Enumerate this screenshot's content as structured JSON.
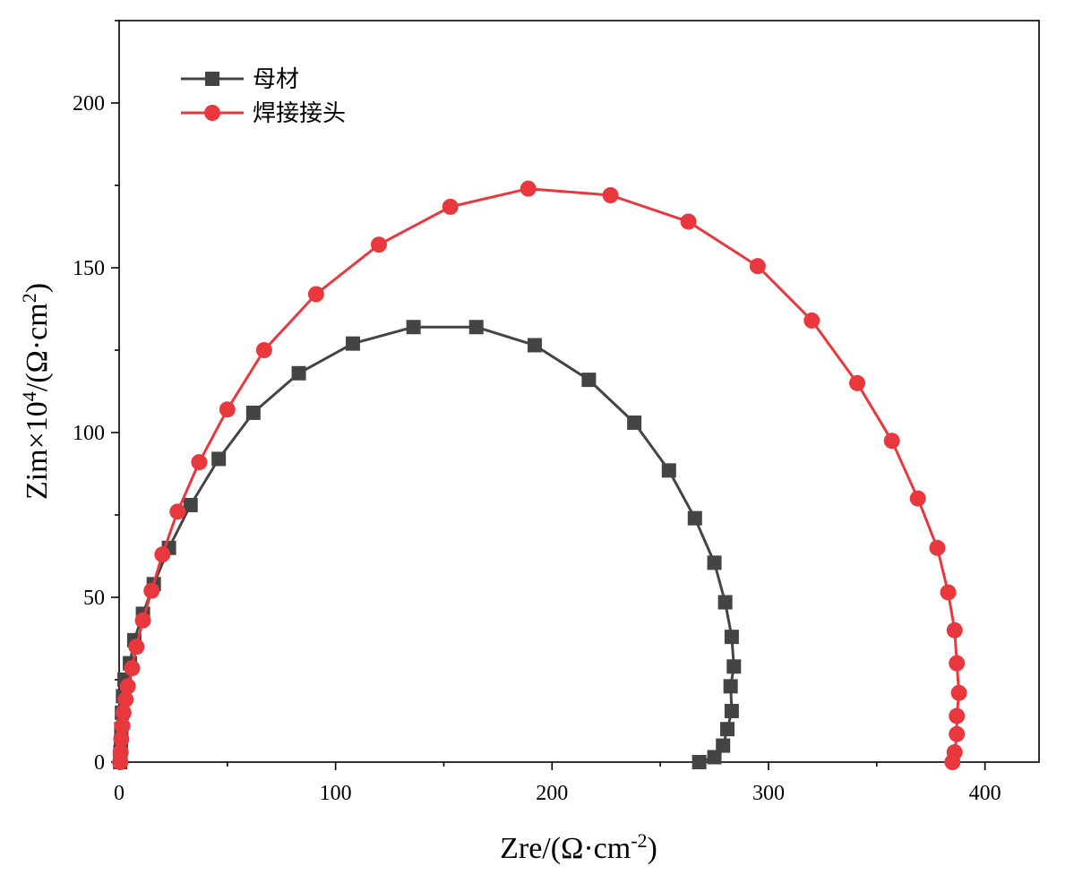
{
  "chart_data": {
    "type": "scatter",
    "title": "",
    "xlabel": {
      "base": "Zre/(Ω·cm",
      "sup": "-2",
      "tail": ")"
    },
    "ylabel": {
      "base": "Zim×10",
      "sup1": "4",
      "mid": "/(Ω·cm",
      "sup2": "2",
      "tail": ")"
    },
    "xlim": [
      0,
      425
    ],
    "ylim": [
      0,
      225
    ],
    "xticks": [
      0,
      100,
      200,
      300,
      400
    ],
    "yticks": [
      0,
      50,
      100,
      150,
      200
    ],
    "xtick_labels": [
      "0",
      "100",
      "200",
      "300",
      "400"
    ],
    "ytick_labels": [
      "0",
      "50",
      "100",
      "150",
      "200"
    ],
    "grid": false,
    "legend_position": "top-left",
    "series": [
      {
        "name": "母材",
        "color": "#444444",
        "marker": "square",
        "points": [
          [
            0.5,
            0
          ],
          [
            0.6,
            3
          ],
          [
            0.8,
            6
          ],
          [
            1,
            10
          ],
          [
            1.3,
            15
          ],
          [
            1.8,
            20
          ],
          [
            2.5,
            25
          ],
          [
            5,
            30
          ],
          [
            7,
            37
          ],
          [
            11,
            45
          ],
          [
            16,
            54
          ],
          [
            23,
            65
          ],
          [
            33,
            78
          ],
          [
            46,
            92
          ],
          [
            62,
            106
          ],
          [
            83,
            118
          ],
          [
            108,
            127
          ],
          [
            136,
            132
          ],
          [
            165,
            132
          ],
          [
            192,
            126.5
          ],
          [
            217,
            116
          ],
          [
            238,
            103
          ],
          [
            254,
            88.5
          ],
          [
            266,
            74
          ],
          [
            275,
            60.5
          ],
          [
            280,
            48.5
          ],
          [
            283,
            38
          ],
          [
            284,
            29
          ],
          [
            282.5,
            23
          ],
          [
            283,
            15.5
          ],
          [
            281,
            10
          ],
          [
            279,
            5
          ],
          [
            275,
            1.5
          ],
          [
            268,
            0
          ]
        ]
      },
      {
        "name": "焊接接头",
        "color": "#e8383d",
        "marker": "circle",
        "points": [
          [
            0.5,
            0
          ],
          [
            0.7,
            3
          ],
          [
            1,
            7
          ],
          [
            1.5,
            11
          ],
          [
            2,
            15
          ],
          [
            3,
            19
          ],
          [
            4,
            23
          ],
          [
            6,
            28.5
          ],
          [
            8,
            35
          ],
          [
            11,
            43
          ],
          [
            15,
            52
          ],
          [
            20,
            63
          ],
          [
            27,
            76
          ],
          [
            37,
            91
          ],
          [
            50,
            107
          ],
          [
            67,
            125
          ],
          [
            91,
            142
          ],
          [
            120,
            157
          ],
          [
            153,
            168.5
          ],
          [
            189,
            174
          ],
          [
            227,
            172
          ],
          [
            263,
            164
          ],
          [
            295,
            150.5
          ],
          [
            320,
            134
          ],
          [
            341,
            115
          ],
          [
            357,
            97.5
          ],
          [
            369,
            80
          ],
          [
            378,
            65
          ],
          [
            383,
            51.5
          ],
          [
            386,
            40
          ],
          [
            387,
            30
          ],
          [
            388,
            21
          ],
          [
            387,
            14
          ],
          [
            387,
            8.5
          ],
          [
            386,
            3
          ],
          [
            385,
            0
          ]
        ]
      }
    ]
  }
}
